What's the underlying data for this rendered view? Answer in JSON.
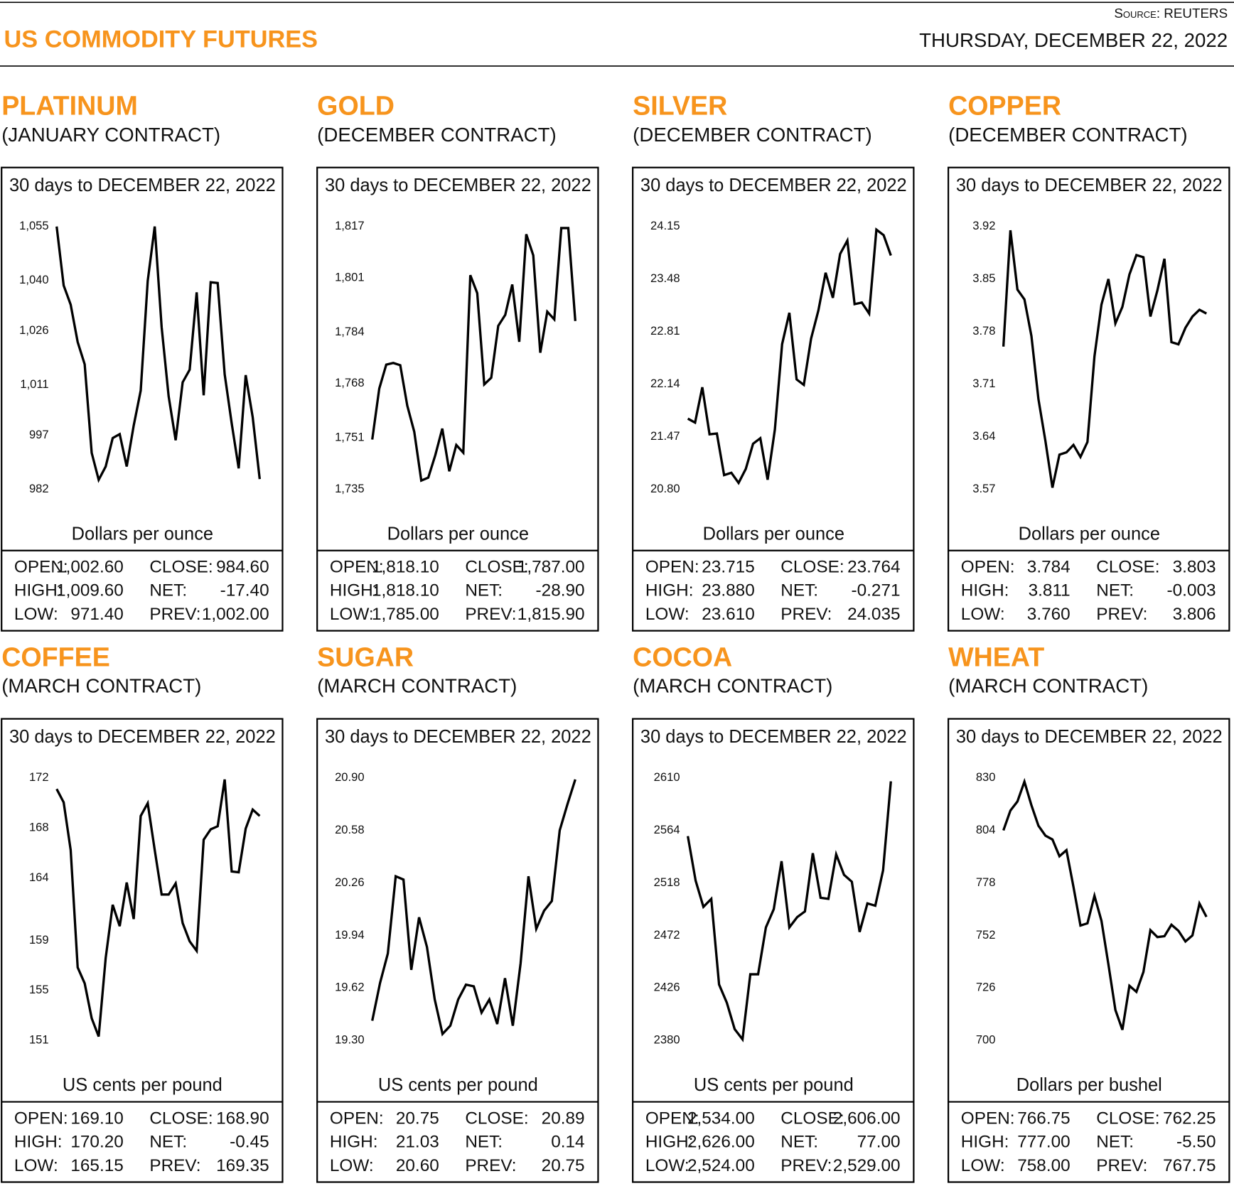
{
  "header": {
    "title": "US COMMODITY FUTURES",
    "source": "Source: REUTERS",
    "date": "THURSDAY, DECEMBER 22, 2022"
  },
  "chart_data": [
    {
      "type": "line",
      "title": "PLATINUM",
      "subtitle": "(JANUARY CONTRACT)",
      "caption": "30 days to DECEMBER 22, 2022",
      "y_label": "Dollars per ounce",
      "color": "#000000",
      "ylim": [
        982,
        1055
      ],
      "yticks": [
        {
          "value": 1055,
          "label": "1,055"
        },
        {
          "value": 1040,
          "label": "1,040"
        },
        {
          "value": 1026,
          "label": "1,026"
        },
        {
          "value": 1011,
          "label": "1,011"
        },
        997,
        982
      ],
      "values": [
        1055,
        1038.6,
        1033.3,
        1022.9,
        1016.7,
        992.1,
        984.6,
        988.3,
        996.2,
        997.3,
        988.3,
        999.7,
        1009.4,
        1039.9,
        1055,
        1027.0,
        1007.8,
        995.6,
        1011.7,
        1015.2,
        1036.7,
        1008.1,
        1039.5,
        1039.3,
        1013.9,
        1000.3,
        987.8,
        1013.7,
        1002.0,
        984.8
      ],
      "stats": [
        [
          "OPEN:",
          "1,002.60",
          "CLOSE:",
          "984.60"
        ],
        [
          "HIGH:",
          "1,009.60",
          "NET:",
          "-17.40"
        ],
        [
          "LOW:",
          "971.40",
          "PREV:",
          "1,002.00"
        ]
      ]
    },
    {
      "type": "line",
      "title": "GOLD",
      "subtitle": "(DECEMBER CONTRACT)",
      "caption": "30 days to DECEMBER 22, 2022",
      "y_label": "Dollars per ounce",
      "color": "#000000",
      "ylim": [
        1735,
        1817
      ],
      "yticks": [
        {
          "value": 1817,
          "label": "1,817"
        },
        {
          "value": 1801,
          "label": "1,801"
        },
        {
          "value": 1784,
          "label": "1,784"
        },
        {
          "value": 1768,
          "label": "1,768"
        },
        {
          "value": 1751,
          "label": "1,751"
        },
        {
          "value": 1735,
          "label": "1,735"
        }
      ],
      "values": [
        1750.5,
        1766.4,
        1773.9,
        1774.4,
        1773.7,
        1761.1,
        1752.9,
        1737.7,
        1738.6,
        1745.6,
        1753.9,
        1740.6,
        1748.8,
        1746.4,
        1801.8,
        1796.2,
        1767.7,
        1769.8,
        1786.0,
        1789.4,
        1798.9,
        1781.0,
        1814.6,
        1808.0,
        1777.6,
        1790.4,
        1788.0,
        1816.5,
        1816.5,
        1787.5
      ],
      "stats": [
        [
          "OPEN:",
          "1,818.10",
          "CLOSE:",
          "1,787.00"
        ],
        [
          "HIGH:",
          "1,818.10",
          "NET:",
          "-28.90"
        ],
        [
          "LOW:",
          "1,785.00",
          "PREV:",
          "1,815.90"
        ]
      ]
    },
    {
      "type": "line",
      "title": "SILVER",
      "subtitle": "(DECEMBER CONTRACT)",
      "caption": "30 days to DECEMBER 22, 2022",
      "y_label": "Dollars per ounce",
      "color": "#000000",
      "ylim": [
        20.8,
        24.15
      ],
      "yticks": [
        24.15,
        23.48,
        22.81,
        22.14,
        21.47,
        {
          "value": 20.8,
          "label": "20.80"
        }
      ],
      "values": [
        21.7,
        21.65,
        22.1,
        21.5,
        21.51,
        20.98,
        21.01,
        20.88,
        21.06,
        21.38,
        21.45,
        20.92,
        21.56,
        22.65,
        23.05,
        22.2,
        22.13,
        22.72,
        23.08,
        23.56,
        23.24,
        23.8,
        23.97,
        23.16,
        23.18,
        23.04,
        24.11,
        24.04,
        23.78
      ],
      "stats": [
        [
          "OPEN:",
          "23.715",
          "CLOSE:",
          "23.764"
        ],
        [
          "HIGH:",
          "23.880",
          "NET:",
          "-0.271"
        ],
        [
          "LOW:",
          "23.610",
          "PREV:",
          "24.035"
        ]
      ]
    },
    {
      "type": "line",
      "title": "COPPER",
      "subtitle": "(DECEMBER CONTRACT)",
      "caption": "30 days to DECEMBER 22, 2022",
      "y_label": "Dollars per ounce",
      "color": "#000000",
      "ylim": [
        3.57,
        3.92
      ],
      "yticks": [
        3.92,
        3.85,
        3.78,
        3.71,
        3.64,
        3.57
      ],
      "values": [
        3.76,
        3.915,
        3.836,
        3.823,
        3.774,
        3.69,
        3.634,
        3.572,
        3.616,
        3.619,
        3.629,
        3.613,
        3.633,
        3.747,
        3.816,
        3.85,
        3.791,
        3.813,
        3.856,
        3.882,
        3.879,
        3.8,
        3.835,
        3.877,
        3.766,
        3.763,
        3.785,
        3.8,
        3.809,
        3.804
      ],
      "stats": [
        [
          "OPEN:",
          "3.784",
          "CLOSE:",
          "3.803"
        ],
        [
          "HIGH:",
          "3.811",
          "NET:",
          "-0.003"
        ],
        [
          "LOW:",
          "3.760",
          "PREV:",
          "3.806"
        ]
      ]
    },
    {
      "type": "line",
      "title": "COFFEE",
      "subtitle": "(MARCH CONTRACT)",
      "caption": "30 days to DECEMBER 22, 2022",
      "y_label": "US cents per pound",
      "color": "#000000",
      "ylim": [
        151,
        172
      ],
      "yticks": [
        172,
        168,
        164,
        159,
        155,
        151
      ],
      "values": [
        171.11,
        170.04,
        166.23,
        156.84,
        155.57,
        152.78,
        151.32,
        157.6,
        161.85,
        160.14,
        163.63,
        160.71,
        168.95,
        169.97,
        166.23,
        162.67,
        162.67,
        163.56,
        160.39,
        158.93,
        158.17,
        167.05,
        167.88,
        168.13,
        171.87,
        164.51,
        164.45,
        167.94,
        169.46,
        168.95
      ],
      "stats": [
        [
          "OPEN:",
          "169.10",
          "CLOSE:",
          "168.90"
        ],
        [
          "HIGH:",
          "170.20",
          "NET:",
          "-0.45"
        ],
        [
          "LOW:",
          "165.15",
          "PREV:",
          "169.35"
        ]
      ]
    },
    {
      "type": "line",
      "title": "SUGAR",
      "subtitle": "(MARCH CONTRACT)",
      "caption": "30 days to DECEMBER 22, 2022",
      "y_label": "US cents per pound",
      "color": "#000000",
      "ylim": [
        19.3,
        20.9
      ],
      "yticks": [
        {
          "value": 20.9,
          "label": "20.90"
        },
        20.58,
        20.26,
        19.94,
        19.62,
        {
          "value": 19.3,
          "label": "19.30"
        }
      ],
      "values": [
        19.42,
        19.65,
        19.83,
        20.3,
        20.28,
        19.73,
        20.05,
        19.87,
        19.55,
        19.34,
        19.39,
        19.55,
        19.64,
        19.63,
        19.47,
        19.55,
        19.4,
        19.68,
        19.39,
        19.77,
        20.3,
        19.98,
        20.09,
        20.15,
        20.58,
        20.74,
        20.89
      ],
      "stats": [
        [
          "OPEN:",
          "20.75",
          "CLOSE:",
          "20.89"
        ],
        [
          "HIGH:",
          "21.03",
          "NET:",
          "0.14"
        ],
        [
          "LOW:",
          "20.60",
          "PREV:",
          "20.75"
        ]
      ]
    },
    {
      "type": "line",
      "title": "COCOA",
      "subtitle": "(MARCH CONTRACT)",
      "caption": "30 days to DECEMBER 22, 2022",
      "y_label": "US cents per pound",
      "color": "#000000",
      "ylim": [
        2380,
        2610
      ],
      "yticks": [
        2610,
        2564,
        2518,
        2472,
        2426,
        2380
      ],
      "values": [
        2559,
        2520,
        2497,
        2504,
        2429,
        2413,
        2390,
        2381,
        2438,
        2438,
        2479,
        2495,
        2537,
        2479,
        2488,
        2493,
        2544,
        2505,
        2504,
        2543,
        2525,
        2519,
        2475,
        2500,
        2498,
        2529,
        2607
      ],
      "stats": [
        [
          "OPEN:",
          "2,534.00",
          "CLOSE:",
          "2,606.00"
        ],
        [
          "HIGH:",
          "2,626.00",
          "NET:",
          "77.00"
        ],
        [
          "LOW:",
          "2,524.00",
          "PREV:",
          "2,529.00"
        ]
      ]
    },
    {
      "type": "line",
      "title": "WHEAT",
      "subtitle": "(MARCH CONTRACT)",
      "caption": "30 days to DECEMBER 22, 2022",
      "y_label": "Dollars per bushel",
      "color": "#000000",
      "ylim": [
        700,
        830
      ],
      "yticks": [
        830,
        804,
        778,
        752,
        726,
        700
      ],
      "values": [
        804.0,
        813.8,
        818.3,
        828.1,
        816.4,
        806.3,
        801.4,
        799.5,
        791.2,
        794.2,
        776.1,
        756.9,
        758.0,
        771.6,
        759.2,
        737.7,
        715.1,
        705.3,
        727.1,
        724.1,
        733.9,
        754.6,
        751.2,
        751.6,
        757.3,
        754.3,
        749.0,
        752.0,
        767.8,
        761.2
      ],
      "stats": [
        [
          "OPEN:",
          "766.75",
          "CLOSE:",
          "762.25"
        ],
        [
          "HIGH:",
          "777.00",
          "NET:",
          "-5.50"
        ],
        [
          "LOW:",
          "758.00",
          "PREV:",
          "767.75"
        ]
      ]
    }
  ]
}
